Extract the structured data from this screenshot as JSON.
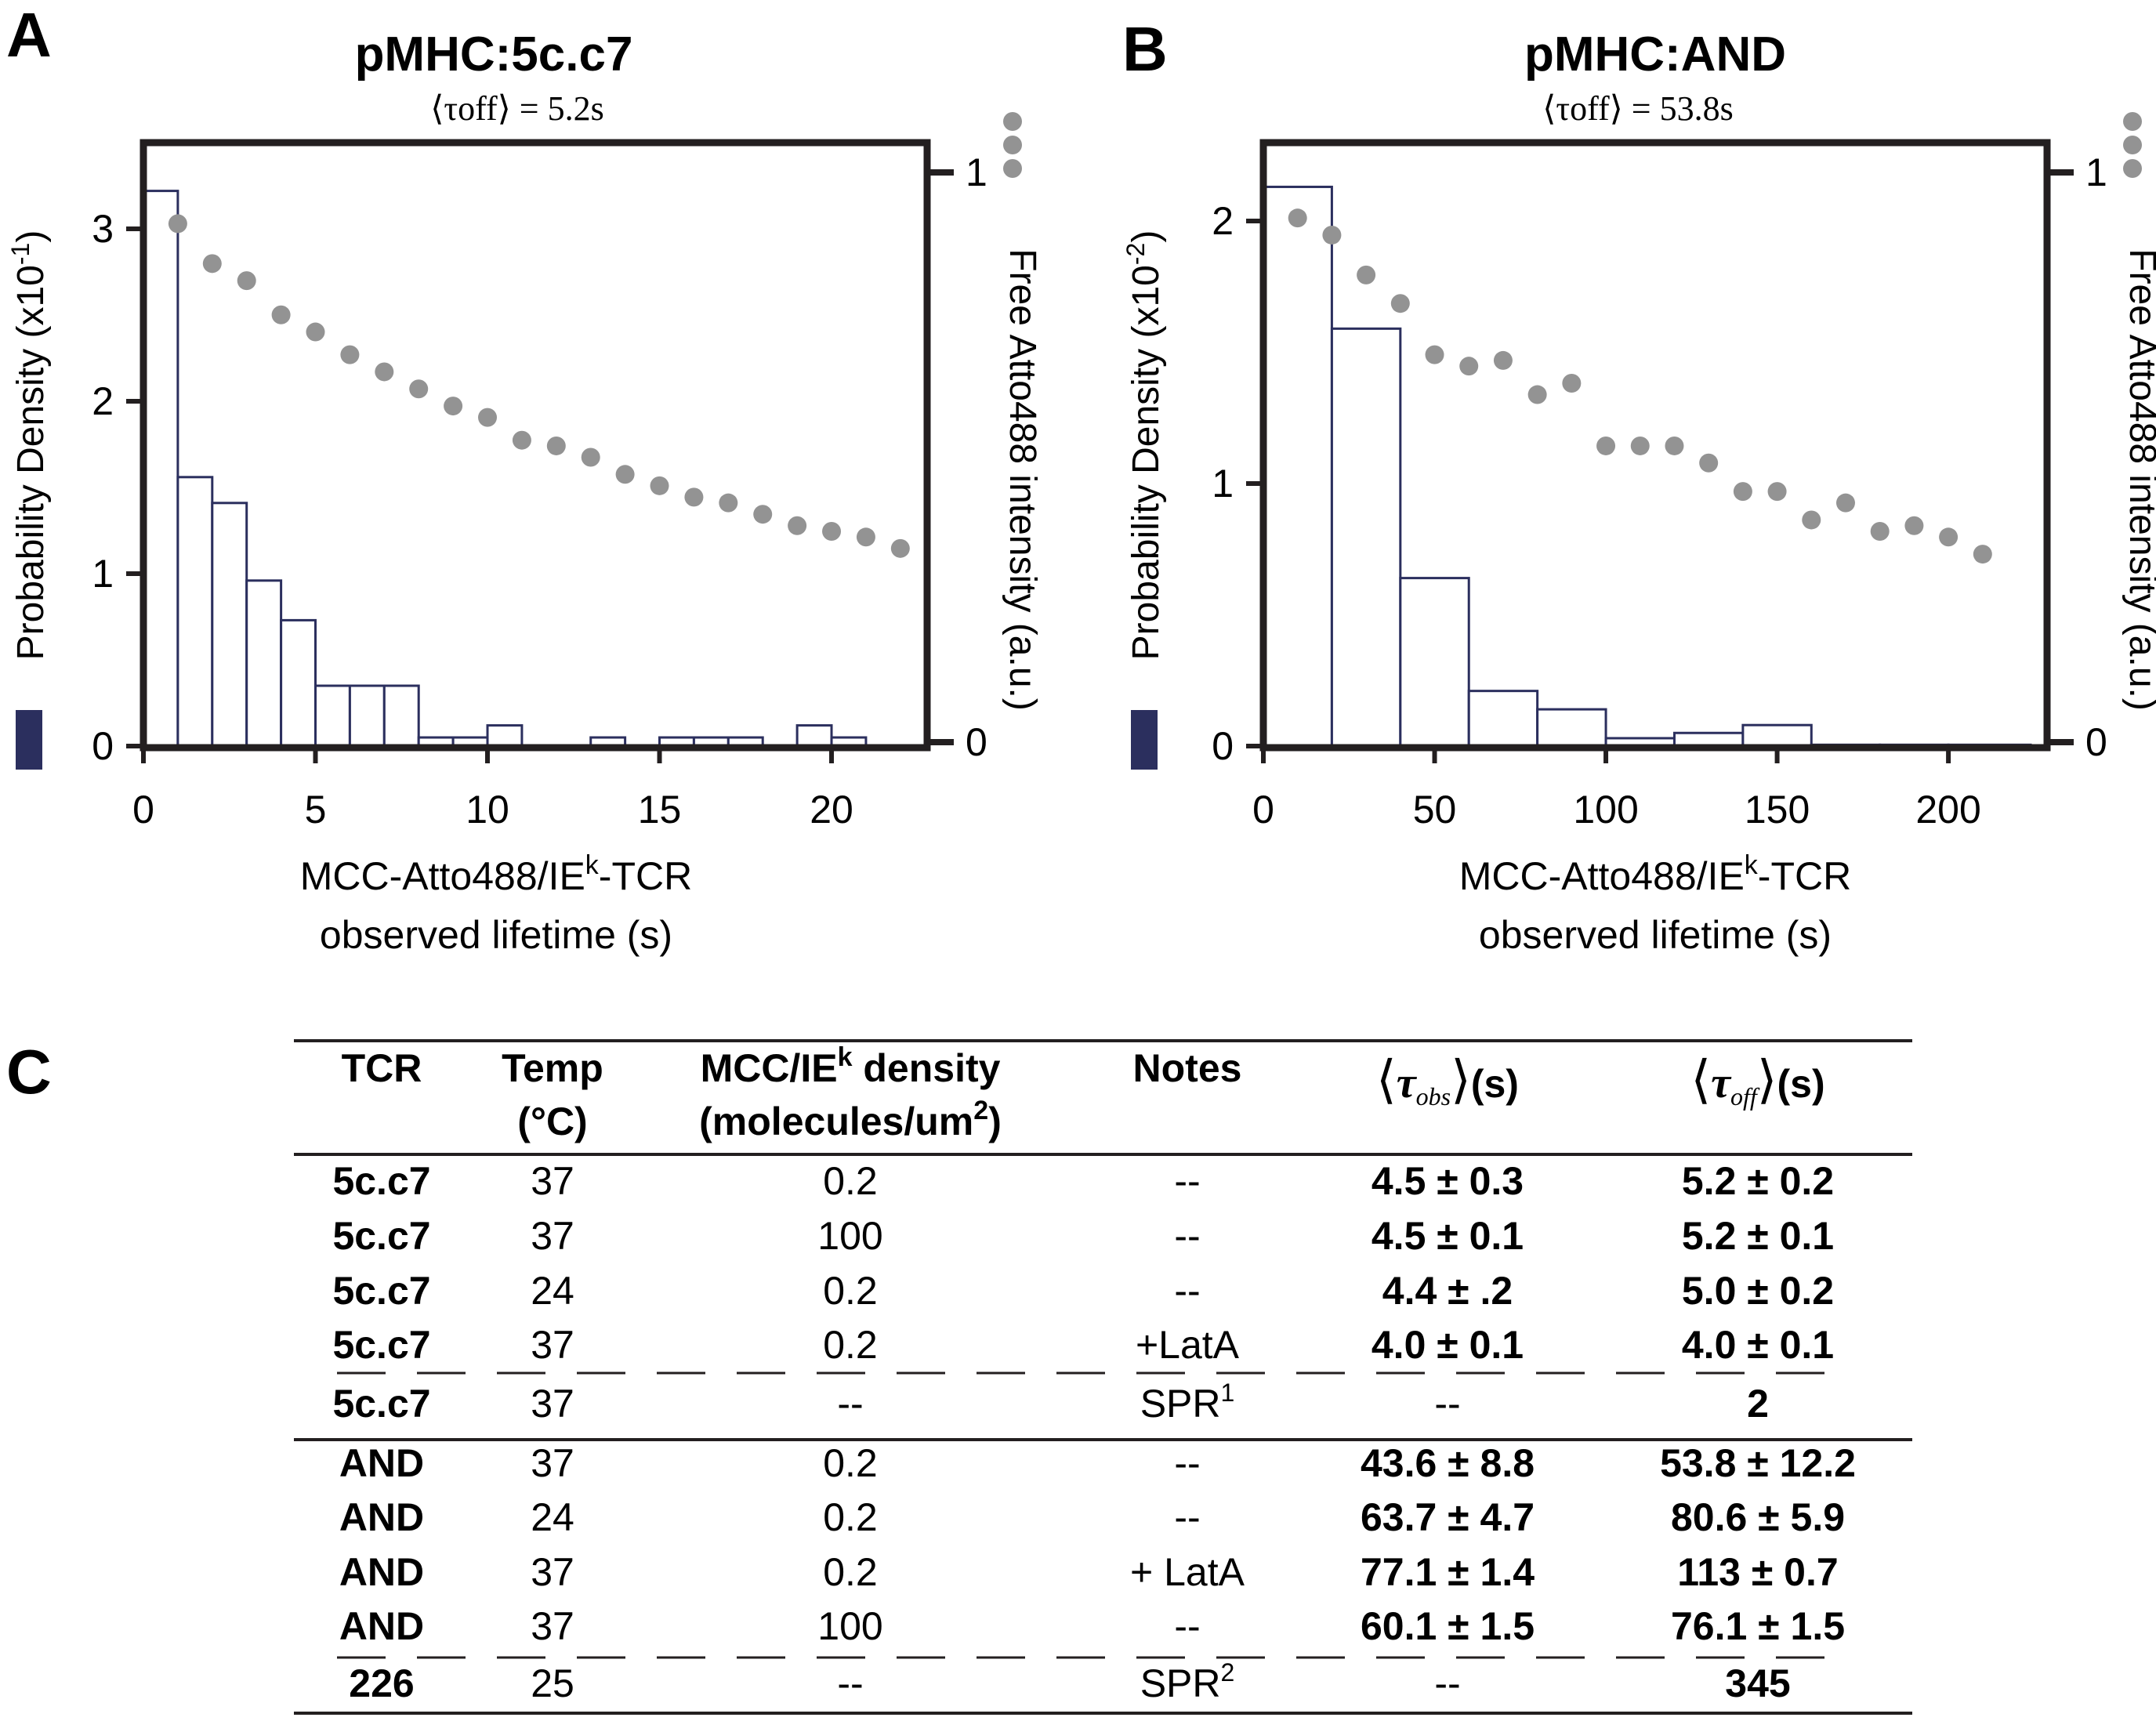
{
  "colors": {
    "bar_edge": "#2b2f5e",
    "bar_fill": "#ffffff",
    "dots": "#939393",
    "axis": "#231f20",
    "legend_swatch": "#2b2f5e"
  },
  "chart_data": [
    {
      "panel_letter": "A",
      "type": "bar",
      "title": "pMHC:5c.c7",
      "subtitle": "⟨τoff⟩ = 5.2s",
      "xlabel_line1": "MCC-Atto488/IEk-TCR",
      "xlabel_line2": "observed lifetime (s)",
      "ylabel": "Probability Density (x10-1)",
      "ylabel_main": "Probability Density (x10",
      "ylabel_exp": "-1",
      "y2label": "Free Atto488 intensity (a.u.)",
      "xlim": [
        0,
        22.3
      ],
      "ylim": [
        0,
        3.35
      ],
      "y2lim": [
        0,
        1.0
      ],
      "xticks": [
        0,
        5,
        10,
        15,
        20
      ],
      "yticks": [
        0,
        1,
        2,
        3
      ],
      "y2ticks": [
        0,
        1
      ],
      "bins": {
        "edges": [
          0,
          1,
          2,
          3,
          4,
          5,
          6,
          7,
          8,
          9,
          10,
          11,
          12,
          13,
          14,
          15,
          16,
          17,
          18,
          19,
          20,
          21,
          22
        ],
        "values": [
          3.22,
          1.56,
          1.41,
          0.96,
          0.73,
          0.35,
          0.35,
          0.35,
          0.05,
          0.05,
          0.12,
          0,
          0,
          0.05,
          0,
          0.05,
          0.05,
          0.05,
          0,
          0.12,
          0.05,
          0
        ]
      },
      "intensity": {
        "x": [
          1,
          2,
          3,
          4,
          5,
          6,
          7,
          8,
          9,
          10,
          11,
          12,
          13,
          14,
          15,
          16,
          17,
          18,
          19,
          20,
          21,
          22
        ],
        "y": [
          0.91,
          0.84,
          0.81,
          0.75,
          0.72,
          0.68,
          0.65,
          0.62,
          0.59,
          0.57,
          0.53,
          0.52,
          0.5,
          0.47,
          0.45,
          0.43,
          0.42,
          0.4,
          0.38,
          0.37,
          0.36,
          0.34
        ]
      },
      "offscale_dots": 3
    },
    {
      "panel_letter": "B",
      "type": "bar",
      "title": "pMHC:AND",
      "subtitle": "⟨τoff⟩ = 53.8s",
      "xlabel_line1": "MCC-Atto488/IEk-TCR",
      "xlabel_line2": "observed lifetime (s)",
      "ylabel": "Probability Density (x10-2)",
      "ylabel_main": "Probability Density (x10",
      "ylabel_exp": "-2",
      "y2label": "Free Atto488 intensity (a.u.)",
      "xlim": [
        0,
        224
      ],
      "ylim": [
        0,
        2.2
      ],
      "y2lim": [
        0,
        1.0
      ],
      "xticks": [
        0,
        50,
        100,
        150,
        200
      ],
      "yticks": [
        0,
        1,
        2
      ],
      "y2ticks": [
        0,
        1
      ],
      "bins": {
        "edges": [
          0,
          20,
          40,
          60,
          80,
          100,
          120,
          140,
          160,
          180,
          200,
          224
        ],
        "values": [
          2.13,
          1.59,
          0.64,
          0.21,
          0.14,
          0.03,
          0.05,
          0.08,
          0.005,
          0.005,
          0.005
        ]
      },
      "intensity": {
        "x": [
          10,
          20,
          30,
          40,
          50,
          60,
          70,
          80,
          90,
          100,
          110,
          120,
          130,
          140,
          150,
          160,
          170,
          180,
          190,
          200,
          210
        ],
        "y": [
          0.92,
          0.89,
          0.82,
          0.77,
          0.68,
          0.66,
          0.67,
          0.61,
          0.63,
          0.52,
          0.52,
          0.52,
          0.49,
          0.44,
          0.44,
          0.39,
          0.42,
          0.37,
          0.38,
          0.36,
          0.33
        ]
      },
      "offscale_dots": 3
    }
  ],
  "table": {
    "panel_letter": "C",
    "headers": {
      "tcr": "TCR",
      "temp_line1": "Temp",
      "temp_line2": "(°C)",
      "density_line1": "MCC/IE",
      "density_line1_sup": "k",
      "density_line1_end": " density",
      "density_line2": "(molecules/um",
      "density_line2_sup": "2",
      "density_line2_end": ")",
      "notes": "Notes",
      "tau_obs": "τ",
      "tau_obs_sub": "obs",
      "tau_off": "τ",
      "tau_off_sub": "off",
      "unit": "(s)"
    },
    "rows": [
      {
        "tcr": "5c.c7",
        "temp": "37",
        "density": "0.2",
        "notes": "--",
        "notes_sup": "",
        "tau_obs": "4.5 ± 0.3",
        "tau_off": "5.2 ± 0.2"
      },
      {
        "tcr": "5c.c7",
        "temp": "37",
        "density": "100",
        "notes": "--",
        "notes_sup": "",
        "tau_obs": "4.5 ± 0.1",
        "tau_off": "5.2 ± 0.1"
      },
      {
        "tcr": "5c.c7",
        "temp": "24",
        "density": "0.2",
        "notes": "--",
        "notes_sup": "",
        "tau_obs": "4.4 ± .2",
        "tau_off": "5.0 ± 0.2"
      },
      {
        "tcr": "5c.c7",
        "temp": "37",
        "density": "0.2",
        "notes": "+LatA",
        "notes_sup": "",
        "tau_obs": "4.0 ± 0.1",
        "tau_off": "4.0 ± 0.1"
      },
      {
        "tcr": "5c.c7",
        "temp": "37",
        "density": "--",
        "notes": "SPR",
        "notes_sup": "1",
        "tau_obs": "--",
        "tau_off": "2"
      },
      {
        "tcr": "AND",
        "temp": "37",
        "density": "0.2",
        "notes": "--",
        "notes_sup": "",
        "tau_obs": "43.6 ± 8.8",
        "tau_off": "53.8 ± 12.2"
      },
      {
        "tcr": "AND",
        "temp": "24",
        "density": "0.2",
        "notes": "--",
        "notes_sup": "",
        "tau_obs": "63.7 ± 4.7",
        "tau_off": "80.6 ± 5.9"
      },
      {
        "tcr": "AND",
        "temp": "37",
        "density": "0.2",
        "notes": "+ LatA",
        "notes_sup": "",
        "tau_obs": "77.1 ± 1.4",
        "tau_off": "113 ± 0.7"
      },
      {
        "tcr": "AND",
        "temp": "37",
        "density": "100",
        "notes": "--",
        "notes_sup": "",
        "tau_obs": "60.1 ± 1.5",
        "tau_off": "76.1 ± 1.5"
      },
      {
        "tcr": "226",
        "temp": "25",
        "density": "--",
        "notes": "SPR",
        "notes_sup": "2",
        "tau_obs": "--",
        "tau_off": "345"
      }
    ]
  }
}
